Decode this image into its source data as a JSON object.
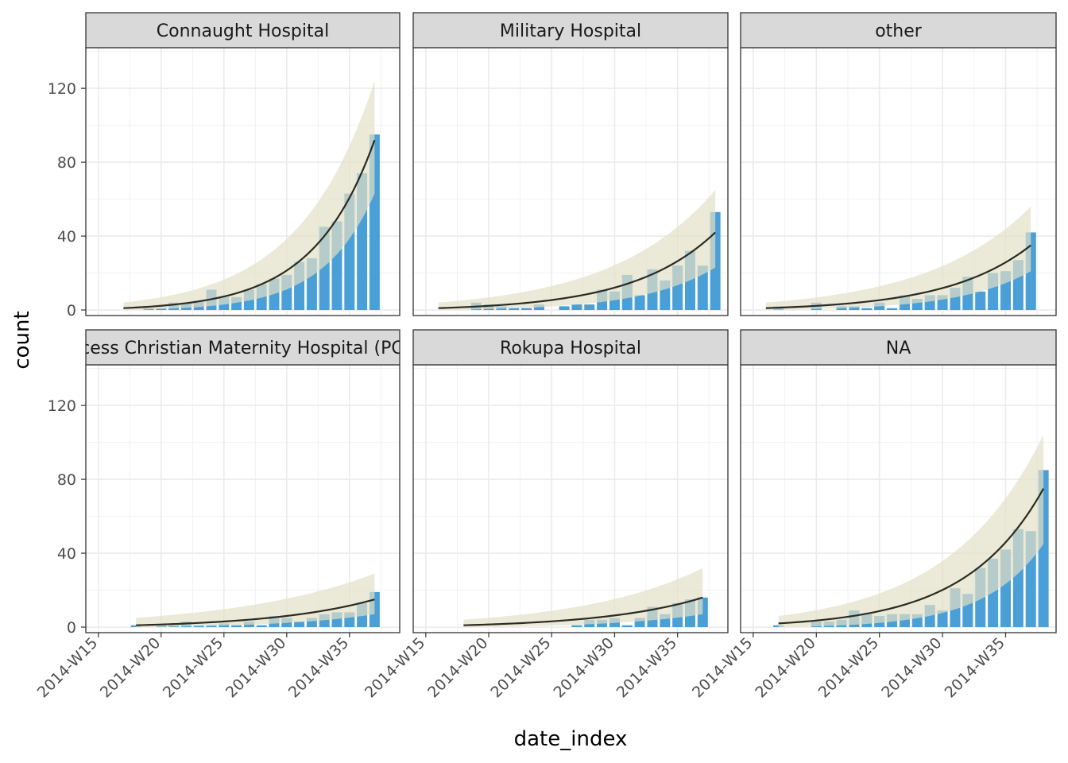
{
  "chart_data": {
    "type": "bar",
    "xlabel": "date_index",
    "ylabel": "count",
    "ylim": [
      -3,
      142
    ],
    "y_ticks": [
      0,
      40,
      80,
      120
    ],
    "x_ticks": [
      "2014-W15",
      "2014-W20",
      "2014-W25",
      "2014-W30",
      "2014-W35"
    ],
    "x_range": [
      "2014-W14",
      "2014-W39"
    ],
    "grid": true,
    "facet_layout": {
      "rows": 2,
      "cols": 3
    },
    "bar_color": "#4a9fd6",
    "band_color": "#e2dfc6",
    "curve_color": "#2b2b22",
    "strip_color": "#d9d9d9",
    "facets": [
      {
        "label": "Connaught Hospital",
        "weeks": [
          "2014-W19",
          "2014-W20",
          "2014-W21",
          "2014-W22",
          "2014-W23",
          "2014-W24",
          "2014-W25",
          "2014-W26",
          "2014-W27",
          "2014-W28",
          "2014-W29",
          "2014-W30",
          "2014-W31",
          "2014-W32",
          "2014-W33",
          "2014-W34",
          "2014-W35",
          "2014-W36",
          "2014-W37",
          "2014-W38"
        ],
        "counts": [
          1,
          1,
          4,
          4,
          5,
          11,
          7,
          7,
          11,
          14,
          17,
          19,
          26,
          28,
          45,
          48,
          63,
          74,
          95,
          null
        ],
        "fit": {
          "start": "2014-W17",
          "end": "2014-W37",
          "curve": [
            1,
            92
          ],
          "band_low": [
            0,
            63
          ],
          "band_high": [
            4,
            124
          ]
        }
      },
      {
        "label": "Military Hospital",
        "weeks": [
          "2014-W19",
          "2014-W20",
          "2014-W21",
          "2014-W22",
          "2014-W23",
          "2014-W24",
          "2014-W25",
          "2014-W26",
          "2014-W27",
          "2014-W28",
          "2014-W29",
          "2014-W30",
          "2014-W31",
          "2014-W32",
          "2014-W33",
          "2014-W34",
          "2014-W35",
          "2014-W36",
          "2014-W37",
          "2014-W38"
        ],
        "counts": [
          4,
          3,
          2,
          1,
          1,
          3,
          0,
          2,
          3,
          3,
          11,
          10,
          19,
          8,
          22,
          16,
          24,
          32,
          24,
          53
        ],
        "fit": {
          "start": "2014-W16",
          "end": "2014-W38",
          "curve": [
            1,
            42
          ],
          "band_low": [
            0,
            23
          ],
          "band_high": [
            4,
            65
          ]
        }
      },
      {
        "label": "other",
        "weeks": [
          "2014-W17",
          "2014-W18",
          "2014-W19",
          "2014-W20",
          "2014-W21",
          "2014-W22",
          "2014-W23",
          "2014-W24",
          "2014-W25",
          "2014-W26",
          "2014-W27",
          "2014-W28",
          "2014-W29",
          "2014-W30",
          "2014-W31",
          "2014-W32",
          "2014-W33",
          "2014-W34",
          "2014-W35",
          "2014-W36",
          "2014-W37"
        ],
        "counts": [
          2,
          0,
          0,
          4,
          0,
          2,
          2,
          1,
          4,
          1,
          8,
          6,
          8,
          8,
          12,
          18,
          10,
          20,
          21,
          27,
          42
        ],
        "fit": {
          "start": "2014-W16",
          "end": "2014-W37",
          "curve": [
            1,
            35
          ],
          "band_low": [
            0,
            21
          ],
          "band_high": [
            4,
            56
          ]
        }
      },
      {
        "label": "Princess Christian Maternity Hospital (PCMH)",
        "weeks": [
          "2014-W18",
          "2014-W19",
          "2014-W20",
          "2014-W21",
          "2014-W22",
          "2014-W23",
          "2014-W24",
          "2014-W25",
          "2014-W26",
          "2014-W27",
          "2014-W28",
          "2014-W29",
          "2014-W30",
          "2014-W31",
          "2014-W32",
          "2014-W33",
          "2014-W34",
          "2014-W35",
          "2014-W36",
          "2014-W37"
        ],
        "counts": [
          1,
          0,
          1,
          1,
          3,
          1,
          1,
          2,
          1,
          3,
          1,
          6,
          5,
          3,
          5,
          7,
          8,
          8,
          13,
          19
        ],
        "fit": {
          "start": "2014-W18",
          "end": "2014-W37",
          "curve": [
            1,
            15
          ],
          "band_low": [
            0,
            7
          ],
          "band_high": [
            5,
            29
          ]
        }
      },
      {
        "label": "Rokupa Hospital",
        "weeks": [
          "2014-W18",
          "2014-W19",
          "2014-W20",
          "2014-W21",
          "2014-W22",
          "2014-W23",
          "2014-W24",
          "2014-W25",
          "2014-W26",
          "2014-W27",
          "2014-W28",
          "2014-W29",
          "2014-W30",
          "2014-W31",
          "2014-W32",
          "2014-W33",
          "2014-W34",
          "2014-W35",
          "2014-W36",
          "2014-W37"
        ],
        "counts": [
          0,
          0,
          0,
          0,
          0,
          0,
          0,
          0,
          0,
          1,
          4,
          4,
          5,
          1,
          5,
          11,
          7,
          13,
          15,
          16
        ],
        "fit": {
          "start": "2014-W18",
          "end": "2014-W37",
          "curve": [
            1,
            16
          ],
          "band_low": [
            0,
            7
          ],
          "band_high": [
            4,
            32
          ]
        }
      },
      {
        "label": "NA",
        "weeks": [
          "2014-W17",
          "2014-W18",
          "2014-W19",
          "2014-W20",
          "2014-W21",
          "2014-W22",
          "2014-W23",
          "2014-W24",
          "2014-W25",
          "2014-W26",
          "2014-W27",
          "2014-W28",
          "2014-W29",
          "2014-W30",
          "2014-W31",
          "2014-W32",
          "2014-W33",
          "2014-W34",
          "2014-W35",
          "2014-W36",
          "2014-W37",
          "2014-W38"
        ],
        "counts": [
          1,
          0,
          0,
          3,
          3,
          4,
          9,
          7,
          6,
          7,
          7,
          7,
          12,
          9,
          21,
          18,
          32,
          37,
          42,
          53,
          52,
          85
        ],
        "fit": {
          "start": "2014-W17",
          "end": "2014-W38",
          "curve": [
            2,
            75
          ],
          "band_low": [
            0,
            45
          ],
          "band_high": [
            6,
            104
          ]
        }
      }
    ]
  }
}
